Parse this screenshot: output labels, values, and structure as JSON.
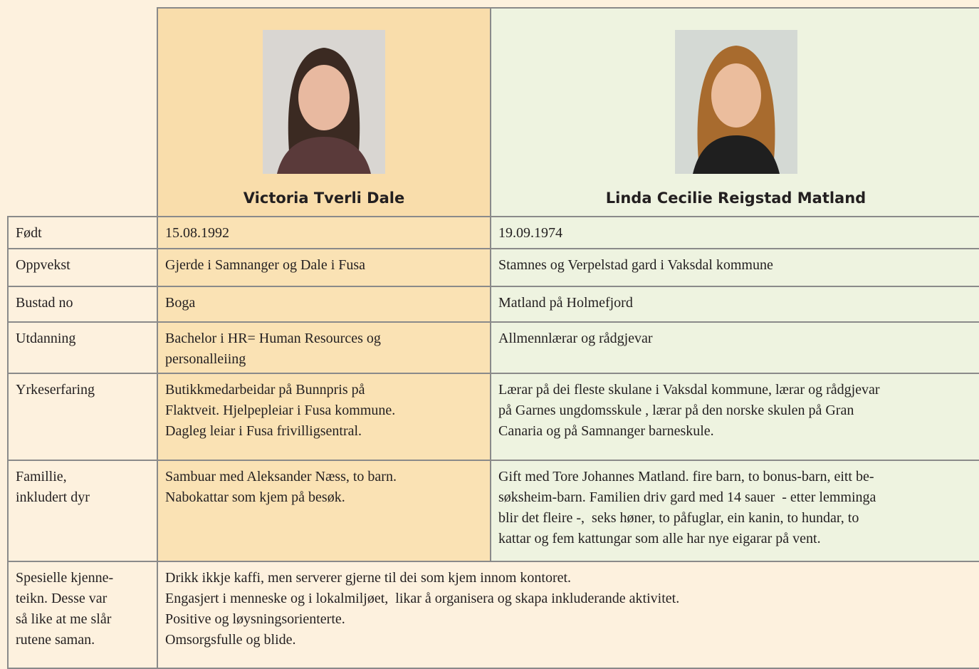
{
  "table": {
    "people": [
      {
        "name": "Victoria Tverli Dale"
      },
      {
        "name": "Linda Cecilie Reigstad Matland"
      }
    ],
    "rows": [
      {
        "label": [
          "Født"
        ],
        "cells": [
          [
            "15.08.1992"
          ],
          [
            "19.09.1974"
          ]
        ]
      },
      {
        "label": [
          "Oppvekst"
        ],
        "cells": [
          [
            "Gjerde i Samnanger og Dale i Fusa"
          ],
          [
            "Stamnes og Verpelstad gard i Vaksdal kommune"
          ]
        ]
      },
      {
        "label": [
          "Bustad no"
        ],
        "cells": [
          [
            "Boga"
          ],
          [
            "Matland på Holmefjord"
          ]
        ]
      },
      {
        "label": [
          "Utdanning"
        ],
        "cells": [
          [
            "Bachelor i HR= Human Resources og",
            "personalleiing"
          ],
          [
            "Allmennlærar og rådgjevar"
          ]
        ]
      },
      {
        "label": [
          "Yrkeserfaring"
        ],
        "cells": [
          [
            "Butikkmedarbeidar på Bunnpris på",
            "Flaktveit. Hjelpepleiar i Fusa kommune.",
            "Dagleg leiar i Fusa frivilligsentral."
          ],
          [
            "Lærar på dei fleste skulane i Vaksdal kommune, lærar og rådgjevar",
            "på Garnes ungdomsskule , lærar på den norske skulen på Gran",
            "Canaria og på Samnanger barneskule."
          ]
        ]
      },
      {
        "label": [
          "Famillie,",
          "inkludert dyr"
        ],
        "cells": [
          [
            "Sambuar med Aleksander Næss, to barn.",
            "Nabokattar som kjem på besøk."
          ],
          [
            "Gift med Tore Johannes Matland. fire barn, to bonus-barn, eitt be-",
            "søksheim-barn. Familien driv gard med 14 sauer  - etter lemminga",
            "blir det fleire -,  seks høner, to påfuglar, ein kanin, to hundar, to",
            "kattar og fem kattungar som alle har nye eigarar på vent."
          ]
        ]
      }
    ],
    "shared_row": {
      "label": [
        "Spesielle kjenne-",
        "teikn. Desse var",
        "så like at me slår",
        "rutene saman."
      ],
      "text": [
        "Drikk ikkje kaffi, men serverer gjerne til dei som kjem innom kontoret.",
        "Engasjert i menneske og i lokalmiljøet,  likar å organisera og skapa inkluderande aktivitet.",
        "Positive og løysningsorienterte.",
        "Omsorgsfulle og blide."
      ]
    }
  }
}
